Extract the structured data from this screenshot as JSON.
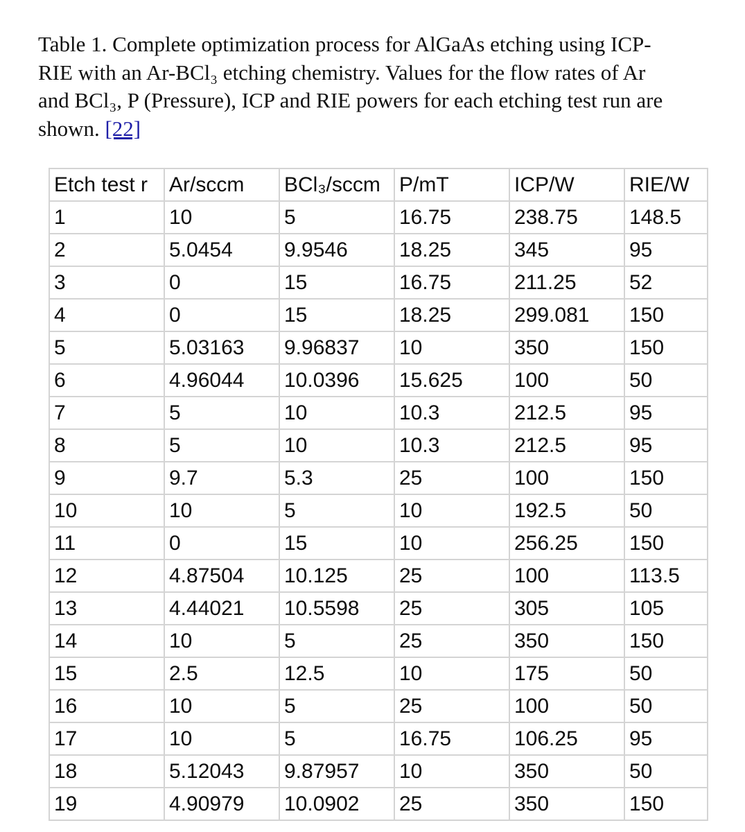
{
  "caption": {
    "line1": "Table 1. Complete optimization process for AlGaAs etching using ICP-",
    "line2": "RIE with an Ar-BCl₃ etching chemistry. Values for the flow rates of Ar",
    "line3": "and BCl₃, P (Pressure), ICP and RIE powers for each etching test run are",
    "line4_text": "shown. ",
    "reference": "[22]"
  },
  "table": {
    "headers": [
      "Etch test r",
      "Ar/sccm",
      "BCl₃/sccm",
      "P/mT",
      "ICP/W",
      "RIE/W"
    ],
    "rows": [
      [
        "1",
        "10",
        "5",
        "16.75",
        "238.75",
        "148.5"
      ],
      [
        "2",
        "5.0454",
        "9.9546",
        "18.25",
        "345",
        "95"
      ],
      [
        "3",
        "0",
        "15",
        "16.75",
        "211.25",
        "52"
      ],
      [
        "4",
        "0",
        "15",
        "18.25",
        "299.081",
        "150"
      ],
      [
        "5",
        "5.03163",
        "9.96837",
        "10",
        "350",
        "150"
      ],
      [
        "6",
        "4.96044",
        "10.0396",
        "15.625",
        "100",
        "50"
      ],
      [
        "7",
        "5",
        "10",
        "10.3",
        "212.5",
        "95"
      ],
      [
        "8",
        "5",
        "10",
        "10.3",
        "212.5",
        "95"
      ],
      [
        "9",
        "9.7",
        "5.3",
        "25",
        "100",
        "150"
      ],
      [
        "10",
        "10",
        "5",
        "10",
        "192.5",
        "50"
      ],
      [
        "11",
        "0",
        "15",
        "10",
        "256.25",
        "150"
      ],
      [
        "12",
        "4.87504",
        "10.125",
        "25",
        "100",
        "113.5"
      ],
      [
        "13",
        "4.44021",
        "10.5598",
        "25",
        "305",
        "105"
      ],
      [
        "14",
        "10",
        "5",
        "25",
        "350",
        "150"
      ],
      [
        "15",
        "2.5",
        "12.5",
        "10",
        "175",
        "50"
      ],
      [
        "16",
        "10",
        "5",
        "25",
        "100",
        "50"
      ],
      [
        "17",
        "10",
        "5",
        "16.75",
        "106.25",
        "95"
      ],
      [
        "18",
        "5.12043",
        "9.87957",
        "10",
        "350",
        "50"
      ],
      [
        "19",
        "4.90979",
        "10.0902",
        "25",
        "350",
        "150"
      ]
    ]
  }
}
